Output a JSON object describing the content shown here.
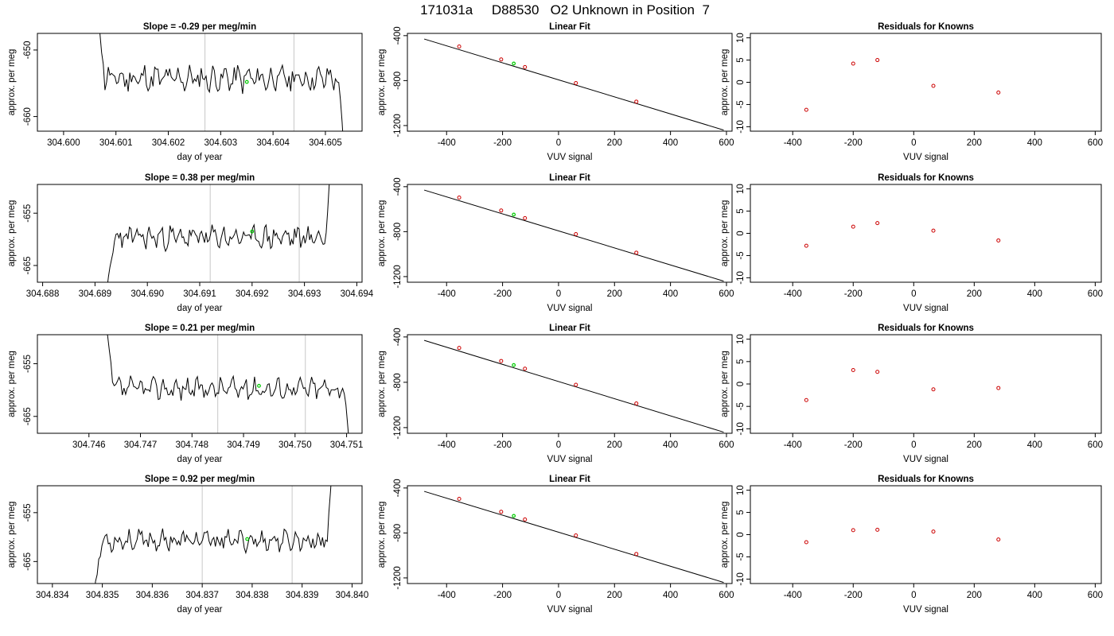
{
  "suptitle": "171031a     D88530   O2 Unknown in Position  7",
  "colors": {
    "series": "#000000",
    "highlight": "#00cc00",
    "known_points": "#cc0000",
    "marker_line": "#c8c8c8"
  },
  "chart_data": [
    {
      "type": "line",
      "title": "Slope =  -0.29  per meg/min",
      "xlabel": "day of year",
      "ylabel": "approx. per meg",
      "xlim": [
        304.5995,
        304.6057
      ],
      "ylim": [
        -662.2,
        -647.5
      ],
      "xticks": [
        "304.600",
        "304.601",
        "304.602",
        "304.603",
        "304.604",
        "304.605"
      ],
      "yticks": [
        "-650",
        "-660"
      ],
      "ytick_values": [
        -650,
        -660
      ],
      "vlines": [
        304.6027,
        304.6044
      ],
      "highlight": [
        304.6035,
        -654.8
      ],
      "series": [
        {
          "start": 304.6006,
          "end": 304.60535,
          "level": -654.3,
          "noise": 1.5,
          "enter_from": -640,
          "exit_to": -665,
          "seed": 11
        }
      ]
    },
    {
      "type": "scatter",
      "title": "Linear Fit",
      "xlabel": "VUV signal",
      "ylabel": "approx. per meg",
      "xlim": [
        -540,
        620
      ],
      "ylim": [
        -1250,
        -380
      ],
      "xticks": [
        "-400",
        "-200",
        "0",
        "200",
        "400",
        "600"
      ],
      "xtick_values": [
        -400,
        -200,
        0,
        200,
        400,
        600
      ],
      "yticks": [
        "-400",
        "-800",
        "-1200"
      ],
      "ytick_values": [
        -400,
        -800,
        -1200
      ],
      "line": [
        [
          -480,
          -430
        ],
        [
          590,
          -1240
        ]
      ],
      "points": [
        [
          -355,
          -497
        ],
        [
          -205,
          -612
        ],
        [
          -120,
          -680
        ],
        [
          62,
          -822
        ],
        [
          278,
          -987
        ]
      ],
      "highlight": [
        -160,
        -648
      ]
    },
    {
      "type": "scatter",
      "title": "Residuals for Knowns",
      "xlabel": "VUV signal",
      "ylabel": "approx. per meg",
      "xlim": [
        -540,
        620
      ],
      "ylim": [
        -11,
        11
      ],
      "xticks": [
        "-400",
        "-200",
        "0",
        "200",
        "400",
        "600"
      ],
      "xtick_values": [
        -400,
        -200,
        0,
        200,
        400,
        600
      ],
      "yticks": [
        "10",
        "5",
        "0",
        "-5",
        "-10"
      ],
      "ytick_values": [
        10,
        5,
        0,
        -5,
        -10
      ],
      "points": [
        [
          -355,
          -6.2
        ],
        [
          -200,
          4.2
        ],
        [
          -120,
          5.0
        ],
        [
          65,
          -0.8
        ],
        [
          280,
          -2.3
        ]
      ]
    },
    {
      "type": "line",
      "title": "Slope =  0.38  per meg/min",
      "xlabel": "day of year",
      "ylabel": "approx. per meg",
      "xlim": [
        304.6879,
        304.6941
      ],
      "ylim": [
        -668.2,
        -649.5
      ],
      "xticks": [
        "304.688",
        "304.689",
        "304.690",
        "304.691",
        "304.692",
        "304.693",
        "304.694"
      ],
      "yticks": [
        "-655",
        "-665"
      ],
      "ytick_values": [
        -655,
        -665
      ],
      "vlines": [
        304.6912,
        304.6929
      ],
      "highlight": [
        304.692,
        -658.5
      ],
      "series": [
        {
          "start": 304.6892,
          "end": 304.6935,
          "level": -659.6,
          "noise": 1.6,
          "enter_from": -672,
          "exit_to": -646,
          "seed": 23
        }
      ]
    },
    {
      "type": "scatter",
      "title": "Linear Fit",
      "xlabel": "VUV signal",
      "ylabel": "approx. per meg",
      "xlim": [
        -540,
        620
      ],
      "ylim": [
        -1250,
        -380
      ],
      "xticks": [
        "-400",
        "-200",
        "0",
        "200",
        "400",
        "600"
      ],
      "xtick_values": [
        -400,
        -200,
        0,
        200,
        400,
        600
      ],
      "yticks": [
        "-400",
        "-800",
        "-1200"
      ],
      "ytick_values": [
        -400,
        -800,
        -1200
      ],
      "line": [
        [
          -480,
          -430
        ],
        [
          590,
          -1240
        ]
      ],
      "points": [
        [
          -355,
          -497
        ],
        [
          -205,
          -612
        ],
        [
          -120,
          -680
        ],
        [
          62,
          -822
        ],
        [
          278,
          -987
        ]
      ],
      "highlight": [
        -160,
        -648
      ]
    },
    {
      "type": "scatter",
      "title": "Residuals for Knowns",
      "xlabel": "VUV signal",
      "ylabel": "approx. per meg",
      "xlim": [
        -540,
        620
      ],
      "ylim": [
        -11,
        11
      ],
      "xticks": [
        "-400",
        "-200",
        "0",
        "200",
        "400",
        "600"
      ],
      "xtick_values": [
        -400,
        -200,
        0,
        200,
        400,
        600
      ],
      "yticks": [
        "10",
        "5",
        "0",
        "-5",
        "-10"
      ],
      "ytick_values": [
        10,
        5,
        0,
        -5,
        -10
      ],
      "points": [
        [
          -355,
          -2.8
        ],
        [
          -200,
          1.5
        ],
        [
          -120,
          2.3
        ],
        [
          65,
          0.6
        ],
        [
          280,
          -1.6
        ]
      ]
    },
    {
      "type": "line",
      "title": "Slope =  0.21  per meg/min",
      "xlabel": "day of year",
      "ylabel": "approx. per meg",
      "xlim": [
        304.745,
        304.7513
      ],
      "ylim": [
        -668.2,
        -649.5
      ],
      "xticks": [
        "304.746",
        "304.747",
        "304.748",
        "304.749",
        "304.750",
        "304.751"
      ],
      "yticks": [
        "-655",
        "-665"
      ],
      "ytick_values": [
        -655,
        -665
      ],
      "vlines": [
        304.7485,
        304.7502
      ],
      "highlight": [
        304.7493,
        -659.2
      ],
      "series": [
        {
          "start": 304.7463,
          "end": 304.75105,
          "level": -659.7,
          "noise": 1.5,
          "enter_from": -646,
          "exit_to": -670,
          "seed": 37
        }
      ]
    },
    {
      "type": "scatter",
      "title": "Linear Fit",
      "xlabel": "VUV signal",
      "ylabel": "approx. per meg",
      "xlim": [
        -540,
        620
      ],
      "ylim": [
        -1250,
        -380
      ],
      "xticks": [
        "-400",
        "-200",
        "0",
        "200",
        "400",
        "600"
      ],
      "xtick_values": [
        -400,
        -200,
        0,
        200,
        400,
        600
      ],
      "yticks": [
        "-400",
        "-800",
        "-1200"
      ],
      "ytick_values": [
        -400,
        -800,
        -1200
      ],
      "line": [
        [
          -480,
          -430
        ],
        [
          590,
          -1240
        ]
      ],
      "points": [
        [
          -355,
          -497
        ],
        [
          -205,
          -612
        ],
        [
          -120,
          -680
        ],
        [
          62,
          -822
        ],
        [
          278,
          -987
        ]
      ],
      "highlight": [
        -160,
        -648
      ]
    },
    {
      "type": "scatter",
      "title": "Residuals for Knowns",
      "xlabel": "VUV signal",
      "ylabel": "approx. per meg",
      "xlim": [
        -540,
        620
      ],
      "ylim": [
        -11,
        11
      ],
      "xticks": [
        "-400",
        "-200",
        "0",
        "200",
        "400",
        "600"
      ],
      "xtick_values": [
        -400,
        -200,
        0,
        200,
        400,
        600
      ],
      "yticks": [
        "10",
        "5",
        "0",
        "-5",
        "-10"
      ],
      "ytick_values": [
        10,
        5,
        0,
        -5,
        -10
      ],
      "points": [
        [
          -355,
          -3.6
        ],
        [
          -200,
          3.1
        ],
        [
          -120,
          2.7
        ],
        [
          65,
          -1.2
        ],
        [
          280,
          -0.9
        ]
      ]
    },
    {
      "type": "line",
      "title": "Slope =  0.92  per meg/min",
      "xlabel": "day of year",
      "ylabel": "approx. per meg",
      "xlim": [
        304.8337,
        304.8402
      ],
      "ylim": [
        -669.5,
        -649.5
      ],
      "xticks": [
        "304.834",
        "304.835",
        "304.836",
        "304.837",
        "304.838",
        "304.839",
        "304.840"
      ],
      "yticks": [
        "-655",
        "-665"
      ],
      "ytick_values": [
        -655,
        -665
      ],
      "vlines": [
        304.837,
        304.8388
      ],
      "highlight": [
        304.8379,
        -660.4
      ],
      "series": [
        {
          "start": 304.8348,
          "end": 304.8396,
          "level": -660.7,
          "noise": 1.5,
          "enter_from": -674,
          "exit_to": -646,
          "seed": 53
        }
      ]
    },
    {
      "type": "scatter",
      "title": "Linear Fit",
      "xlabel": "VUV signal",
      "ylabel": "approx. per meg",
      "xlim": [
        -540,
        620
      ],
      "ylim": [
        -1250,
        -380
      ],
      "xticks": [
        "-400",
        "-200",
        "0",
        "200",
        "400",
        "600"
      ],
      "xtick_values": [
        -400,
        -200,
        0,
        200,
        400,
        600
      ],
      "yticks": [
        "-400",
        "-800",
        "-1200"
      ],
      "ytick_values": [
        -400,
        -800,
        -1200
      ],
      "line": [
        [
          -480,
          -430
        ],
        [
          590,
          -1240
        ]
      ],
      "points": [
        [
          -355,
          -497
        ],
        [
          -205,
          -612
        ],
        [
          -120,
          -680
        ],
        [
          62,
          -822
        ],
        [
          278,
          -987
        ]
      ],
      "highlight": [
        -160,
        -648
      ]
    },
    {
      "type": "scatter",
      "title": "Residuals for Knowns",
      "xlabel": "VUV signal",
      "ylabel": "approx. per meg",
      "xlim": [
        -540,
        620
      ],
      "ylim": [
        -11,
        11
      ],
      "xticks": [
        "-400",
        "-200",
        "0",
        "200",
        "400",
        "600"
      ],
      "xtick_values": [
        -400,
        -200,
        0,
        200,
        400,
        600
      ],
      "yticks": [
        "10",
        "5",
        "0",
        "-5",
        "-10"
      ],
      "ytick_values": [
        10,
        5,
        0,
        -5,
        -10
      ],
      "points": [
        [
          -355,
          -1.7
        ],
        [
          -200,
          1.0
        ],
        [
          -120,
          1.1
        ],
        [
          65,
          0.7
        ],
        [
          280,
          -1.1
        ]
      ]
    }
  ]
}
